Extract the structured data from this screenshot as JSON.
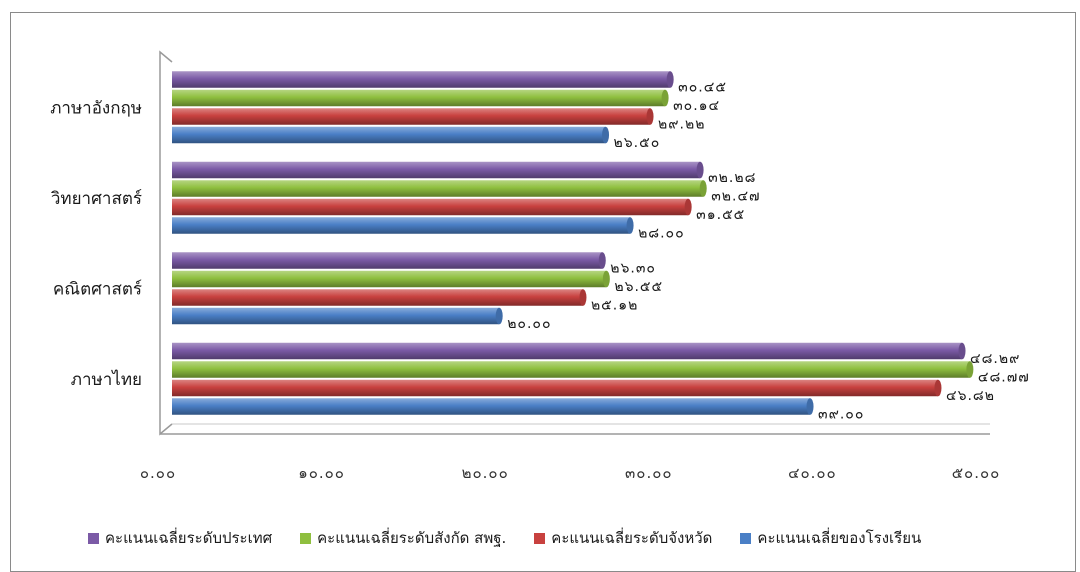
{
  "chart_data": {
    "type": "bar",
    "orientation": "horizontal",
    "categories": [
      "ภาษาอังกฤษ",
      "วิทยาศาสตร์",
      "คณิตศาสตร์",
      "ภาษาไทย"
    ],
    "series": [
      {
        "name": "คะแนนเฉลี่ยระดับประเทศ",
        "color": "#7b5aa6",
        "values": [
          30.45,
          32.28,
          26.3,
          48.29
        ],
        "labels": [
          "๓๐.๔๕",
          "๓๒.๒๘",
          "๒๖.๓๐",
          "๔๘.๒๙"
        ]
      },
      {
        "name": "คะแนนเฉลี่ยระดับสังกัด สพฐ.",
        "color": "#8fbf3f",
        "values": [
          30.14,
          32.47,
          26.55,
          48.77
        ],
        "labels": [
          "๓๐.๑๔",
          "๓๒.๔๗",
          "๒๖.๕๕",
          "๔๘.๗๗"
        ]
      },
      {
        "name": "คะแนนเฉลี่ยระดับจังหวัด",
        "color": "#c8413f",
        "values": [
          29.22,
          31.55,
          25.12,
          46.82
        ],
        "labels": [
          "๒๙.๒๒",
          "๓๑.๕๕",
          "๒๕.๑๒",
          "๔๖.๘๒"
        ]
      },
      {
        "name": "คะแนนเฉลี่ยของโรงเรียน",
        "color": "#4a7fc6",
        "values": [
          26.5,
          28.0,
          20.0,
          39.0
        ],
        "labels": [
          "๒๖.๕๐",
          "๒๘.๐๐",
          "๒๐.๐๐",
          "๓๙.๐๐"
        ]
      }
    ],
    "xlim": [
      0,
      50
    ],
    "xticks": [
      0,
      10,
      20,
      30,
      40,
      50
    ],
    "xtick_labels": [
      "๐.๐๐",
      "๑๐.๐๐",
      "๒๐.๐๐",
      "๓๐.๐๐",
      "๔๐.๐๐",
      "๕๐.๐๐"
    ],
    "legend_position": "bottom",
    "grid": false
  }
}
